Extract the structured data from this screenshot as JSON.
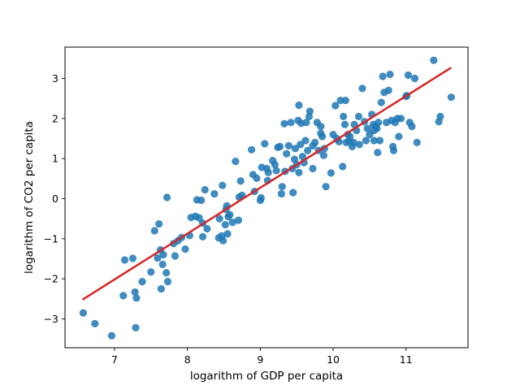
{
  "chart_data": {
    "type": "scatter",
    "title": "",
    "xlabel": "logarithm of GDP per capita",
    "ylabel": "logarithm of CO2 per capita",
    "xlim": [
      6.32,
      11.85
    ],
    "ylim": [
      -3.72,
      3.78
    ],
    "xticks": [
      7,
      8,
      9,
      10,
      11
    ],
    "yticks": [
      -3,
      -2,
      -1,
      0,
      1,
      2,
      3
    ],
    "grid": false,
    "legend": "none",
    "colors": {
      "points": "#1f77b4",
      "fit_line": "#d62728",
      "axes": "#000000"
    },
    "series": [
      {
        "type": "scatter",
        "points": [
          [
            6.57,
            -2.85
          ],
          [
            6.73,
            -3.12
          ],
          [
            6.96,
            -3.42
          ],
          [
            7.12,
            -2.42
          ],
          [
            7.14,
            -1.53
          ],
          [
            7.25,
            -1.49
          ],
          [
            7.28,
            -2.33
          ],
          [
            7.3,
            -2.48
          ],
          [
            7.29,
            -3.22
          ],
          [
            7.38,
            -2.07
          ],
          [
            7.5,
            -1.83
          ],
          [
            7.55,
            -0.8
          ],
          [
            7.59,
            -1.48
          ],
          [
            7.61,
            -0.63
          ],
          [
            7.63,
            -1.28
          ],
          [
            7.64,
            -2.25
          ],
          [
            7.66,
            -1.64
          ],
          [
            7.67,
            -1.4
          ],
          [
            7.72,
            0.03
          ],
          [
            7.71,
            -1.85
          ],
          [
            7.73,
            -2.07
          ],
          [
            7.81,
            -1.12
          ],
          [
            7.83,
            -1.43
          ],
          [
            7.87,
            -1.05
          ],
          [
            7.92,
            -0.97
          ],
          [
            7.97,
            -1.26
          ],
          [
            8.03,
            -0.92
          ],
          [
            8.05,
            -0.47
          ],
          [
            8.11,
            -0.44
          ],
          [
            8.13,
            -0.03
          ],
          [
            8.16,
            -0.48
          ],
          [
            8.19,
            -0.04
          ],
          [
            8.21,
            -0.61
          ],
          [
            8.21,
            -0.95
          ],
          [
            8.24,
            0.22
          ],
          [
            8.27,
            -0.75
          ],
          [
            8.37,
            0.12
          ],
          [
            8.43,
            -0.98
          ],
          [
            8.44,
            -0.5
          ],
          [
            8.47,
            -0.93
          ],
          [
            8.49,
            -1.05
          ],
          [
            8.48,
            0.33
          ],
          [
            8.52,
            -0.65
          ],
          [
            8.53,
            -0.27
          ],
          [
            8.54,
            -0.18
          ],
          [
            8.55,
            -0.88
          ],
          [
            8.56,
            -0.45
          ],
          [
            8.58,
            -0.4
          ],
          [
            8.62,
            -0.59
          ],
          [
            8.66,
            0.93
          ],
          [
            8.7,
            -0.54
          ],
          [
            8.71,
            0.04
          ],
          [
            8.73,
            0.44
          ],
          [
            8.75,
            0.08
          ],
          [
            8.88,
            1.22
          ],
          [
            8.9,
            0.6
          ],
          [
            8.92,
            0.18
          ],
          [
            8.95,
            0.51
          ],
          [
            9.0,
            -0.04
          ],
          [
            9.01,
            0.02
          ],
          [
            9.02,
            0.78
          ],
          [
            9.06,
            1.37
          ],
          [
            9.09,
            0.75
          ],
          [
            9.1,
            0.45
          ],
          [
            9.11,
            0.65
          ],
          [
            9.17,
            0.95
          ],
          [
            9.2,
            0.85
          ],
          [
            9.22,
            0.7
          ],
          [
            9.24,
            1.28
          ],
          [
            9.27,
            1.3
          ],
          [
            9.29,
            0.12
          ],
          [
            9.3,
            0.3
          ],
          [
            9.33,
            1.87
          ],
          [
            9.34,
            0.68
          ],
          [
            9.36,
            1.12
          ],
          [
            9.39,
            1.32
          ],
          [
            9.42,
            1.9
          ],
          [
            9.44,
            0.75
          ],
          [
            9.45,
            0.15
          ],
          [
            9.47,
            0.98
          ],
          [
            9.48,
            1.25
          ],
          [
            9.5,
            0.85
          ],
          [
            9.52,
            1.95
          ],
          [
            9.53,
            2.33
          ],
          [
            9.53,
            0.65
          ],
          [
            9.55,
            1.35
          ],
          [
            9.56,
            1.88
          ],
          [
            9.58,
            1.05
          ],
          [
            9.6,
            0.9
          ],
          [
            9.62,
            1.45
          ],
          [
            9.63,
            1.9
          ],
          [
            9.65,
            1.2
          ],
          [
            9.67,
            2.05
          ],
          [
            9.68,
            2.18
          ],
          [
            9.72,
            1.32
          ],
          [
            9.72,
            0.75
          ],
          [
            9.75,
            1.4
          ],
          [
            9.78,
            1.9
          ],
          [
            9.8,
            1.2
          ],
          [
            9.83,
            1.8
          ],
          [
            9.83,
            1.63
          ],
          [
            9.87,
            1.08
          ],
          [
            9.88,
            1.25
          ],
          [
            9.9,
            0.3
          ],
          [
            9.97,
            0.64
          ],
          [
            10.0,
            1.6
          ],
          [
            10.03,
            2.32
          ],
          [
            10.05,
            1.5
          ],
          [
            10.1,
            2.45
          ],
          [
            10.13,
            0.8
          ],
          [
            10.14,
            2.05
          ],
          [
            10.16,
            1.85
          ],
          [
            10.17,
            2.45
          ],
          [
            10.18,
            1.4
          ],
          [
            10.2,
            1.6
          ],
          [
            10.23,
            1.55
          ],
          [
            10.26,
            1.3
          ],
          [
            10.28,
            1.4
          ],
          [
            10.29,
            1.85
          ],
          [
            10.32,
            1.7
          ],
          [
            10.35,
            2.05
          ],
          [
            10.36,
            1.35
          ],
          [
            10.4,
            2.75
          ],
          [
            10.45,
            1.45
          ],
          [
            10.47,
            1.75
          ],
          [
            10.5,
            1.6
          ],
          [
            10.53,
            2.1
          ],
          [
            10.55,
            1.85
          ],
          [
            10.56,
            1.45
          ],
          [
            10.58,
            1.8
          ],
          [
            10.6,
            1.75
          ],
          [
            10.61,
            1.15
          ],
          [
            10.62,
            1.9
          ],
          [
            10.64,
            1.45
          ],
          [
            10.66,
            2.4
          ],
          [
            10.68,
            3.05
          ],
          [
            10.7,
            2.65
          ],
          [
            10.73,
            1.9
          ],
          [
            10.76,
            2.7
          ],
          [
            10.78,
            3.1
          ],
          [
            10.8,
            1.95
          ],
          [
            10.82,
            1.3
          ],
          [
            10.83,
            1.2
          ],
          [
            10.85,
            1.9
          ],
          [
            10.88,
            2.0
          ],
          [
            10.9,
            1.55
          ],
          [
            10.93,
            2.0
          ],
          [
            11.0,
            2.55
          ],
          [
            11.03,
            3.08
          ],
          [
            11.05,
            1.9
          ],
          [
            11.08,
            1.8
          ],
          [
            11.12,
            3.0
          ],
          [
            11.15,
            1.4
          ],
          [
            11.38,
            3.45
          ],
          [
            11.45,
            1.92
          ],
          [
            11.47,
            2.05
          ],
          [
            11.62,
            2.53
          ],
          [
            10.22,
            1.43
          ],
          [
            9.85,
            1.55
          ],
          [
            10.08,
            1.42
          ],
          [
            10.43,
            1.92
          ],
          [
            10.56,
            1.7
          ],
          [
            11.01,
            2.57
          ]
        ]
      },
      {
        "type": "line",
        "points": [
          [
            6.56,
            -2.52
          ],
          [
            11.62,
            3.27
          ]
        ]
      }
    ]
  }
}
